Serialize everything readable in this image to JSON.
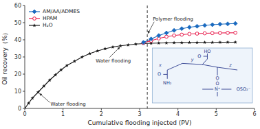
{
  "chart_data": {
    "type": "line",
    "xlabel": "Cumulative flooding injected (PV)",
    "ylabel": "Oil recovery（%）",
    "xlim": [
      0,
      6
    ],
    "ylim": [
      0,
      60
    ],
    "xticks": [
      0,
      1,
      2,
      3,
      4,
      5,
      6
    ],
    "yticks": [
      0,
      10,
      20,
      30,
      40,
      50,
      60
    ],
    "grid": false,
    "legend": "upper left",
    "series": [
      {
        "name": "AM/AA/ADMES",
        "color": "#1a6abf",
        "marker": "diamond",
        "line_style": "solid",
        "x": [
          3.1,
          3.3,
          3.5,
          3.7,
          3.9,
          4.1,
          4.3,
          4.5,
          4.7,
          4.9,
          5.1,
          5.3,
          5.5
        ],
        "values": [
          38.5,
          40.5,
          42.5,
          44.0,
          45.5,
          46.5,
          47.3,
          47.9,
          48.4,
          48.8,
          49.1,
          49.3,
          49.5
        ]
      },
      {
        "name": "HPAM",
        "color": "#e8194a",
        "marker": "circle",
        "line_style": "solid",
        "x": [
          3.1,
          3.3,
          3.5,
          3.7,
          3.9,
          4.1,
          4.3,
          4.5,
          4.7,
          4.9,
          5.1,
          5.3,
          5.5
        ],
        "values": [
          38.2,
          39.5,
          40.8,
          41.8,
          42.5,
          43.0,
          43.4,
          43.6,
          43.8,
          43.9,
          44.0,
          44.05,
          44.1
        ]
      },
      {
        "name": "H₂O",
        "color": "#1a1a1a",
        "marker": "star",
        "line_style": "solid",
        "x": [
          0.0,
          0.1,
          0.2,
          0.35,
          0.5,
          0.65,
          0.8,
          0.95,
          1.1,
          1.3,
          1.5,
          1.7,
          1.9,
          2.1,
          2.3,
          2.5,
          2.7,
          2.9,
          3.1,
          3.3,
          3.5,
          3.7,
          3.9,
          4.1,
          4.3,
          4.5,
          4.7,
          4.9,
          5.1,
          5.3,
          5.5
        ],
        "values": [
          0.0,
          3.0,
          6.0,
          9.5,
          13.0,
          16.5,
          19.5,
          22.5,
          25.0,
          27.5,
          30.0,
          32.0,
          33.5,
          34.8,
          35.8,
          36.5,
          37.0,
          37.5,
          37.8,
          38.0,
          38.1,
          38.2,
          38.3,
          38.35,
          38.4,
          38.45,
          38.5,
          38.5,
          38.55,
          38.6,
          38.6
        ]
      }
    ],
    "vline": 3.2,
    "annotations": [
      "Water flooding",
      "Water flooding",
      "Polymer flooding",
      "HO",
      "O",
      "x",
      "y",
      "z",
      "O",
      "NH₂",
      "O",
      "O",
      "N⁺",
      "OSO₂⁻"
    ]
  }
}
